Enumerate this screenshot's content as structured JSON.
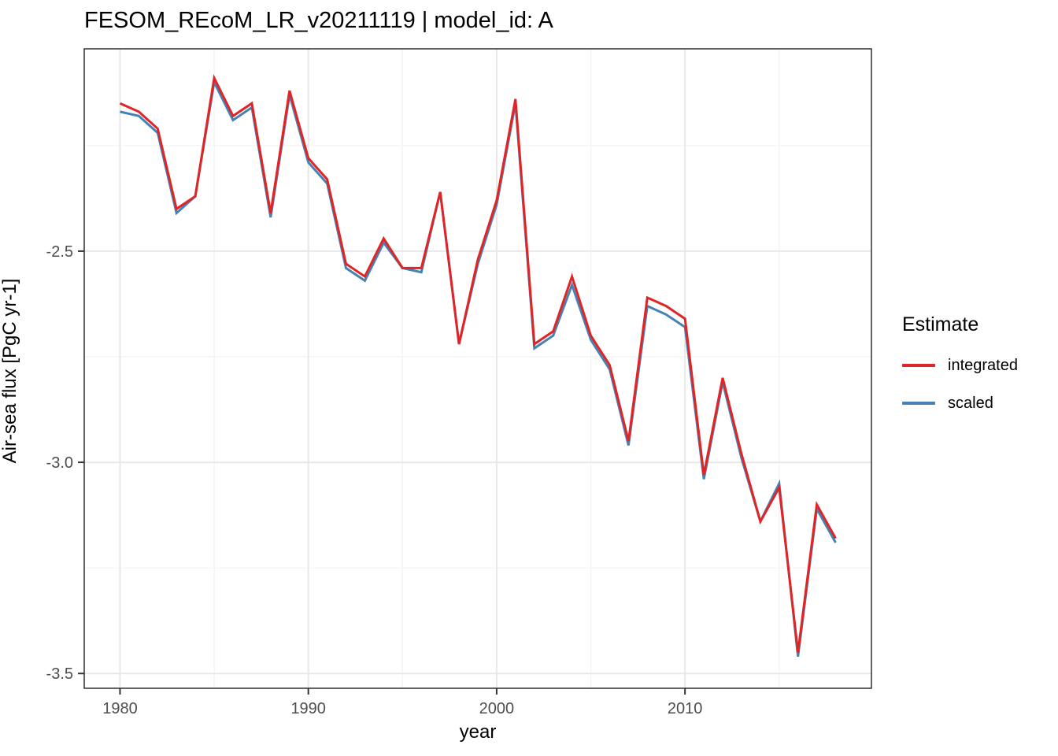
{
  "header": {
    "title": "FESOM_REcoM_LR_v20211119 | model_id: A"
  },
  "axes": {
    "x": {
      "label": "year",
      "ticks": [
        1980,
        1990,
        2000,
        2010
      ],
      "tick_labels": [
        "1980",
        "1990",
        "2000",
        "2010"
      ],
      "minor_ticks": [
        1985,
        1995,
        2005,
        2015
      ]
    },
    "y": {
      "label": "Air-sea flux [PgC yr-1]",
      "ticks": [
        -2.5,
        -3.0,
        -3.5
      ],
      "tick_labels": [
        "-2.5",
        "-3.0",
        "-3.5"
      ],
      "minor_ticks": [
        -2.25,
        -2.75,
        -3.25
      ]
    }
  },
  "legend": {
    "title": "Estimate",
    "items": [
      {
        "label": "integrated",
        "color": "#e12426"
      },
      {
        "label": "scaled",
        "color": "#4682b4"
      }
    ]
  },
  "chart_data": {
    "type": "line",
    "title": "FESOM_REcoM_LR_v20211119 | model_id: A",
    "xlabel": "year",
    "ylabel": "Air-sea flux [PgC yr-1]",
    "x": [
      1980,
      1981,
      1982,
      1983,
      1984,
      1985,
      1986,
      1987,
      1988,
      1989,
      1990,
      1991,
      1992,
      1993,
      1994,
      1995,
      1996,
      1997,
      1998,
      1999,
      2000,
      2001,
      2002,
      2003,
      2004,
      2005,
      2006,
      2007,
      2008,
      2009,
      2010,
      2011,
      2012,
      2013,
      2014,
      2015,
      2016,
      2017,
      2018
    ],
    "series": [
      {
        "name": "integrated",
        "color": "#e12426",
        "values": [
          -2.15,
          -2.17,
          -2.21,
          -2.4,
          -2.37,
          -2.09,
          -2.18,
          -2.15,
          -2.41,
          -2.12,
          -2.28,
          -2.33,
          -2.53,
          -2.56,
          -2.47,
          -2.54,
          -2.54,
          -2.36,
          -2.72,
          -2.52,
          -2.38,
          -2.14,
          -2.72,
          -2.69,
          -2.56,
          -2.7,
          -2.77,
          -2.95,
          -2.61,
          -2.63,
          -2.66,
          -3.03,
          -2.8,
          -2.98,
          -3.14,
          -3.06,
          -3.45,
          -3.1,
          -3.18
        ]
      },
      {
        "name": "scaled",
        "color": "#4682b4",
        "values": [
          -2.17,
          -2.18,
          -2.22,
          -2.41,
          -2.37,
          -2.1,
          -2.19,
          -2.16,
          -2.42,
          -2.13,
          -2.29,
          -2.34,
          -2.54,
          -2.57,
          -2.48,
          -2.54,
          -2.55,
          -2.36,
          -2.72,
          -2.53,
          -2.39,
          -2.15,
          -2.73,
          -2.7,
          -2.58,
          -2.71,
          -2.78,
          -2.96,
          -2.63,
          -2.65,
          -2.68,
          -3.04,
          -2.81,
          -2.99,
          -3.14,
          -3.05,
          -3.46,
          -3.11,
          -3.19
        ]
      }
    ],
    "xlim": [
      1978.1,
      2019.9
    ],
    "ylim": [
      -3.535,
      -2.021
    ],
    "grid": true,
    "legend_position": "right",
    "colors": {
      "grid_major": "#e8e8e8",
      "grid_minor": "#f4f4f4",
      "panel_border": "#3c3c3c",
      "tick_mark": "#333333",
      "tick_label": "#4d4d4d"
    }
  }
}
